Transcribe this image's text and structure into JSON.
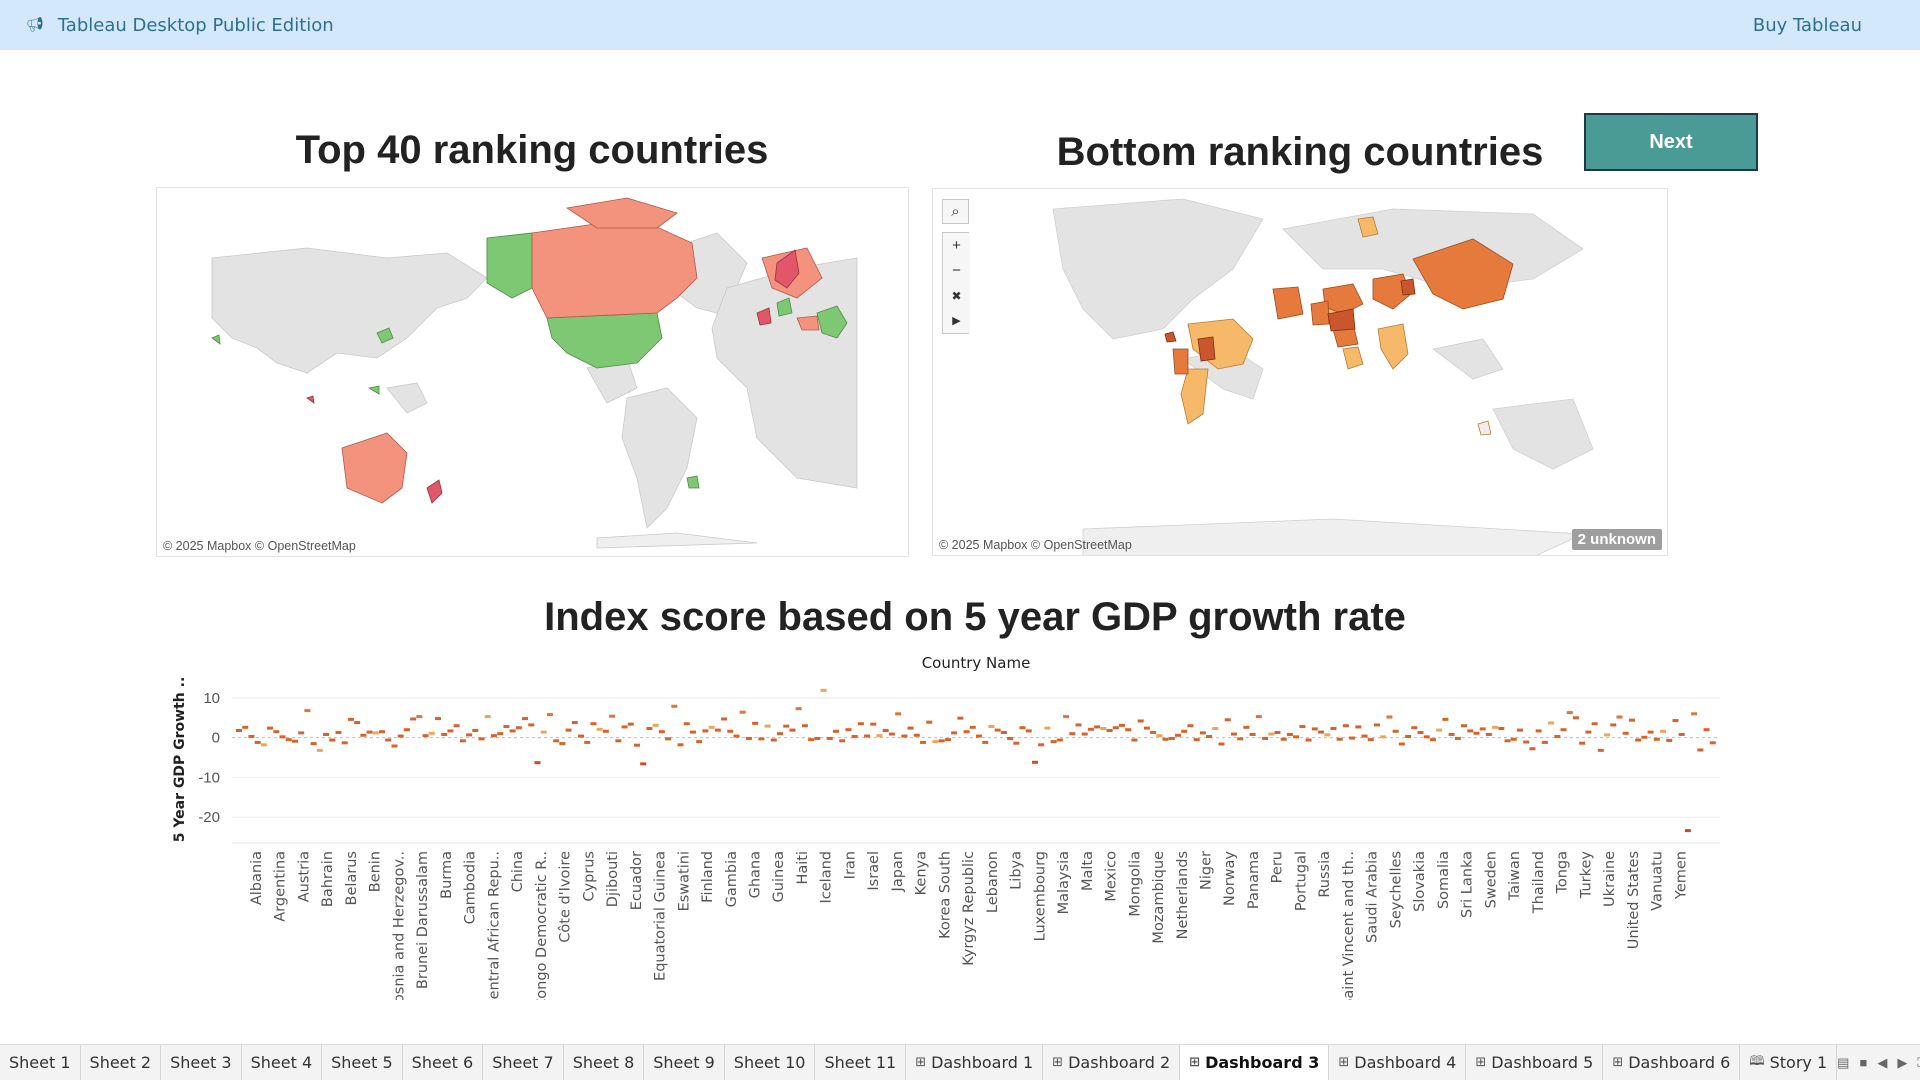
{
  "topbar": {
    "app_title": "Tableau Desktop Public Edition",
    "buy_label": "Buy Tableau",
    "icon": "megaphone-icon"
  },
  "dashboard": {
    "top_title": "Top 40 ranking countries",
    "bottom_title": "Bottom ranking countries",
    "next_label": "Next",
    "attribution": "© 2025 Mapbox © OpenStreetMap",
    "unknown_badge": "2 unknown",
    "chart_title": "Index score based on 5 year GDP growth rate"
  },
  "map_tools": [
    "search-icon",
    "zoom-in-icon",
    "zoom-out-icon",
    "reset-map-icon",
    "expand-arrow-icon"
  ],
  "colors": {
    "top_green": "#7ec873",
    "top_salmon": "#f3937d",
    "top_red": "#e2566a",
    "bottom_orange": "#e57a3c",
    "bottom_yellow": "#f5b969",
    "bottom_darkorange": "#c9562c",
    "accent": "#4a9a95",
    "topbar_bg": "#d3e9fb"
  },
  "chart_data": {
    "type": "scatter",
    "title": "Index score based on 5 year GDP growth rate",
    "xlabel": "Country Name",
    "ylabel": "5 Year GDP Growth ..",
    "ylim": [
      -24,
      13
    ],
    "yticks": [
      10,
      0,
      -10,
      -20
    ],
    "x_tick_labels": [
      "Albania",
      "Argentina",
      "Austria",
      "Bahrain",
      "Belarus",
      "Benin",
      "Bosnia and Herzegov..",
      "Brunei Darussalam",
      "Burma",
      "Cambodia",
      "Central African Repu..",
      "China",
      "Congo Democratic R..",
      "Côte d'Ivoire",
      "Cyprus",
      "Djibouti",
      "Ecuador",
      "Equatorial Guinea",
      "Eswatini",
      "Finland",
      "Gambia",
      "Ghana",
      "Guinea",
      "Haiti",
      "Iceland",
      "Iran",
      "Israel",
      "Japan",
      "Kenya",
      "Korea South",
      "Kyrgyz Republic",
      "Lebanon",
      "Libya",
      "Luxembourg",
      "Malaysia",
      "Malta",
      "Mexico",
      "Mongolia",
      "Mozambique",
      "Netherlands",
      "Niger",
      "Norway",
      "Panama",
      "Peru",
      "Portugal",
      "Russia",
      "Saint Vincent and th..",
      "Saudi Arabia",
      "Seychelles",
      "Slovakia",
      "Somalia",
      "Sri Lanka",
      "Sweden",
      "Taiwan",
      "Thailand",
      "Tonga",
      "Turkey",
      "Ukraine",
      "United States",
      "Vanuatu",
      "Yemen"
    ],
    "values": [
      1.8,
      2.6,
      0.3,
      -1.2,
      -1.8,
      2.4,
      1.5,
      0.2,
      -0.5,
      -0.9,
      1.2,
      6.8,
      -1.5,
      -3.2,
      0.8,
      -0.6,
      1.3,
      -1.3,
      4.6,
      3.8,
      0.6,
      1.4,
      1.2,
      1.5,
      -0.6,
      -2.1,
      0.4,
      2.0,
      4.7,
      5.3,
      0.5,
      1.1,
      4.8,
      0.8,
      1.7,
      3.0,
      -0.8,
      0.7,
      1.8,
      -0.3,
      5.3,
      0.5,
      1.0,
      2.8,
      1.7,
      2.5,
      4.8,
      3.2,
      -6.3,
      1.4,
      5.8,
      -0.8,
      -1.5,
      1.9,
      3.8,
      0.4,
      -1.2,
      3.5,
      2.1,
      1.6,
      5.4,
      -0.8,
      2.7,
      3.4,
      -1.9,
      -6.6,
      2.3,
      3.1,
      1.5,
      -0.3,
      7.9,
      -1.8,
      3.5,
      1.4,
      -1.0,
      1.7,
      2.6,
      1.9,
      4.7,
      1.6,
      0.4,
      6.4,
      -0.2,
      3.6,
      -0.3,
      2.9,
      -0.6,
      1.0,
      2.9,
      1.9,
      7.3,
      3.0,
      -0.5,
      -0.2,
      11.9,
      -0.2,
      1.6,
      -0.8,
      2.0,
      0.3,
      3.5,
      0.4,
      3.4,
      0.5,
      1.8,
      0.9,
      6.0,
      0.4,
      2.4,
      0.6,
      -1.2,
      3.9,
      -1.0,
      -0.8,
      -0.5,
      1.2,
      4.9,
      1.5,
      2.6,
      0.4,
      -1.2,
      2.8,
      1.9,
      1.3,
      -0.2,
      -1.4,
      2.5,
      1.7,
      -6.2,
      -1.8,
      2.4,
      -1.0,
      -0.6,
      5.3,
      1.0,
      3.2,
      0.9,
      2.1,
      2.7,
      2.3,
      1.8,
      2.5,
      3.1,
      2.0,
      -0.6,
      4.2,
      2.4,
      1.3,
      0.5,
      -0.4,
      -0.2,
      0.6,
      1.6,
      3.0,
      -0.5,
      1.2,
      0.3,
      2.3,
      -1.6,
      4.5,
      0.9,
      -0.3,
      2.6,
      0.8,
      5.3,
      -0.2,
      0.9,
      1.3,
      -0.4,
      0.8,
      0.2,
      2.8,
      -0.6,
      2.2,
      1.4,
      0.7,
      2.3,
      -0.4,
      3.0,
      -0.1,
      2.7,
      0.4,
      -0.5,
      3.2,
      0.2,
      5.2,
      1.6,
      -1.6,
      0.3,
      2.5,
      1.3,
      0.2,
      -0.5,
      1.9,
      4.6,
      0.8,
      -0.2,
      3.0,
      1.7,
      1.1,
      2.2,
      0.8,
      2.6,
      2.3,
      -0.8,
      -0.4,
      1.9,
      -1.1,
      -2.8,
      1.7,
      -1.2,
      3.7,
      0.3,
      2.0,
      6.3,
      5.0,
      -1.4,
      1.4,
      3.5,
      -3.2,
      0.7,
      3.2,
      5.2,
      1.1,
      4.4,
      -0.6,
      0.1,
      1.4,
      -0.4,
      1.6,
      -0.7,
      4.3,
      0.8,
      -23.4,
      6.0,
      -3.1,
      2.0,
      -1.3
    ]
  },
  "tabs": [
    {
      "label": "Sheet 1",
      "icon": ""
    },
    {
      "label": "Sheet 2",
      "icon": ""
    },
    {
      "label": "Sheet 3",
      "icon": ""
    },
    {
      "label": "Sheet 4",
      "icon": ""
    },
    {
      "label": "Sheet 5",
      "icon": ""
    },
    {
      "label": "Sheet 6",
      "icon": ""
    },
    {
      "label": "Sheet 7",
      "icon": ""
    },
    {
      "label": "Sheet 8",
      "icon": ""
    },
    {
      "label": "Sheet 9",
      "icon": ""
    },
    {
      "label": "Sheet 10",
      "icon": ""
    },
    {
      "label": "Sheet 11",
      "icon": ""
    },
    {
      "label": "Dashboard 1",
      "icon": "dashboard-icon"
    },
    {
      "label": "Dashboard 2",
      "icon": "dashboard-icon"
    },
    {
      "label": "Dashboard 3",
      "icon": "dashboard-icon",
      "active": true
    },
    {
      "label": "Dashboard 4",
      "icon": "dashboard-icon"
    },
    {
      "label": "Dashboard 5",
      "icon": "dashboard-icon"
    },
    {
      "label": "Dashboard 6",
      "icon": "dashboard-icon"
    },
    {
      "label": "Story 1",
      "icon": "story-icon"
    }
  ]
}
